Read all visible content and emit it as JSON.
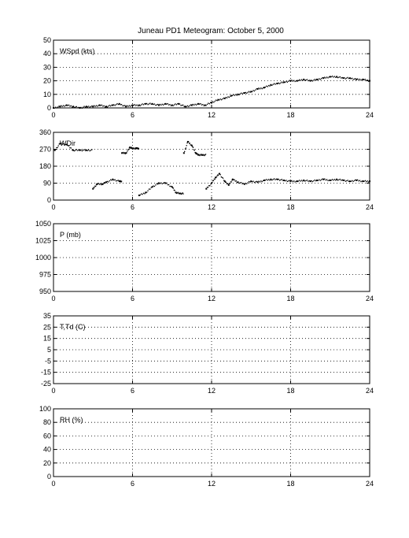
{
  "figure": {
    "title": "Juneau PD1 Meteogram:   October  5, 2000"
  },
  "chart_data": [
    {
      "type": "scatter",
      "ylabel": "WSpd (kts)",
      "xlim": [
        0,
        24
      ],
      "ylim": [
        0,
        50
      ],
      "xticks": [
        0,
        6,
        12,
        18,
        24
      ],
      "yticks": [
        0,
        10,
        20,
        30,
        40,
        50
      ],
      "grid": true,
      "series": [
        {
          "x": [
            0.0,
            0.5,
            1.0,
            1.5,
            2.0,
            2.5,
            3.0,
            3.5,
            4.0,
            4.5,
            5.0,
            5.5,
            6.0,
            6.5,
            7.0,
            7.5,
            8.0,
            8.5,
            9.0,
            9.5,
            10.0,
            10.5,
            11.0,
            11.5,
            12.0,
            12.5,
            13.0,
            13.5,
            14.0,
            14.5,
            15.0,
            15.5,
            16.0,
            16.5,
            17.0,
            17.5,
            18.0,
            18.5,
            19.0,
            19.5,
            20.0,
            20.5,
            21.0,
            21.5,
            22.0,
            22.5,
            23.0,
            23.5,
            24.0
          ],
          "y": [
            0,
            1,
            2,
            1,
            0,
            1,
            1,
            2,
            1,
            2,
            3,
            1,
            2,
            2,
            3,
            3,
            2,
            3,
            2,
            3,
            1,
            2,
            3,
            2,
            4,
            6,
            7,
            9,
            10,
            11,
            12,
            14,
            15,
            17,
            18,
            19,
            20,
            20,
            21,
            20,
            21,
            22,
            23,
            23,
            22,
            22,
            21,
            21,
            20
          ]
        }
      ]
    },
    {
      "type": "scatter",
      "ylabel": "WDir",
      "xlim": [
        0,
        24
      ],
      "ylim": [
        0,
        360
      ],
      "xticks": [
        0,
        6,
        12,
        18,
        24
      ],
      "yticks": [
        0,
        90,
        180,
        270,
        360
      ],
      "grid": true,
      "series": [
        {
          "x": [
            0.1,
            0.5,
            1.0,
            1.5,
            2.0,
            2.5,
            3.0,
            3.3,
            3.7,
            4.0,
            4.5,
            5.0,
            5.2,
            5.5,
            5.8,
            6.0,
            6.3,
            6.5,
            7.0,
            7.5,
            8.0,
            8.5,
            9.0,
            9.3,
            9.6,
            9.9,
            10.2,
            10.5,
            10.8,
            11.0,
            11.3,
            11.6,
            12.0,
            12.3,
            12.6,
            13.0,
            13.3,
            13.6,
            14.0,
            14.5,
            15.0,
            15.5,
            16.0,
            16.5,
            17.0,
            17.5,
            18.0,
            18.5,
            19.0,
            19.5,
            20.0,
            20.5,
            21.0,
            21.5,
            22.0,
            22.5,
            23.0,
            23.5,
            24.0
          ],
          "y": [
            265,
            300,
            295,
            265,
            265,
            265,
            60,
            85,
            85,
            95,
            110,
            100,
            250,
            250,
            280,
            275,
            275,
            25,
            40,
            70,
            90,
            90,
            70,
            40,
            35,
            250,
            310,
            290,
            250,
            240,
            240,
            60,
            90,
            120,
            140,
            100,
            80,
            110,
            95,
            85,
            100,
            95,
            105,
            110,
            110,
            105,
            100,
            100,
            105,
            100,
            105,
            110,
            105,
            110,
            105,
            100,
            105,
            100,
            100
          ]
        }
      ]
    },
    {
      "type": "scatter",
      "ylabel": "P (mb)",
      "xlim": [
        0,
        24
      ],
      "ylim": [
        950,
        1050
      ],
      "xticks": [
        0,
        6,
        12,
        18,
        24
      ],
      "yticks": [
        950,
        975,
        1000,
        1025,
        1050
      ],
      "grid": true,
      "series": []
    },
    {
      "type": "scatter",
      "ylabel": "T,Td (C)",
      "xlim": [
        0,
        24
      ],
      "ylim": [
        -25,
        35
      ],
      "xticks": [
        0,
        6,
        12,
        18,
        24
      ],
      "yticks": [
        -25,
        -15,
        -5,
        5,
        15,
        25,
        35
      ],
      "grid": true,
      "series": []
    },
    {
      "type": "scatter",
      "ylabel": "RH (%)",
      "xlim": [
        0,
        24
      ],
      "ylim": [
        0,
        100
      ],
      "xticks": [
        0,
        6,
        12,
        18,
        24
      ],
      "yticks": [
        0,
        20,
        40,
        60,
        80,
        100
      ],
      "grid": true,
      "series": []
    }
  ]
}
